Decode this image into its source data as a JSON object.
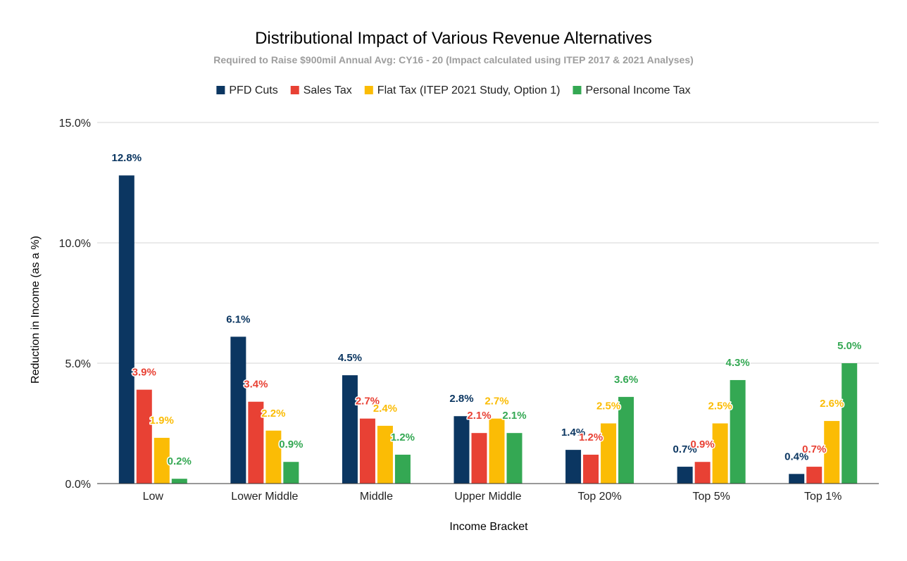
{
  "chart_data": {
    "type": "bar",
    "title": "Distributional Impact of Various Revenue Alternatives",
    "subtitle": "Required to Raise $900mil Annual Avg: CY16 - 20 (Impact calculated using ITEP 2017 & 2021 Analyses)",
    "xlabel": "Income Bracket",
    "ylabel": "Reduction in Income (as a %)",
    "ylim": [
      0,
      15
    ],
    "yticks": [
      {
        "value": 0,
        "label": "0.0%"
      },
      {
        "value": 5,
        "label": "5.0%"
      },
      {
        "value": 10,
        "label": "10.0%"
      },
      {
        "value": 15,
        "label": "15.0%"
      }
    ],
    "grid": true,
    "legend_position": "top",
    "categories": [
      "Low",
      "Lower Middle",
      "Middle",
      "Upper Middle",
      "Top 20%",
      "Top 5%",
      "Top 1%"
    ],
    "series": [
      {
        "name": "PFD Cuts",
        "color": "#0b3661",
        "values": [
          12.8,
          6.1,
          4.5,
          2.8,
          1.4,
          0.7,
          0.4
        ],
        "labels": [
          "12.8%",
          "6.1%",
          "4.5%",
          "2.8%",
          "1.4%",
          "0.7%",
          "0.4%"
        ]
      },
      {
        "name": "Sales Tax",
        "color": "#e84134",
        "values": [
          3.9,
          3.4,
          2.7,
          2.1,
          1.2,
          0.9,
          0.7
        ],
        "labels": [
          "3.9%",
          "3.4%",
          "2.7%",
          "2.1%",
          "1.2%",
          "0.9%",
          "0.7%"
        ]
      },
      {
        "name": "Flat Tax (ITEP 2021 Study, Option 1)",
        "color": "#fbbc05",
        "values": [
          1.9,
          2.2,
          2.4,
          2.7,
          2.5,
          2.5,
          2.6
        ],
        "labels": [
          "1.9%",
          "2.2%",
          "2.4%",
          "2.7%",
          "2.5%",
          "2.5%",
          "2.6%"
        ]
      },
      {
        "name": "Personal Income Tax",
        "color": "#34a853",
        "values": [
          0.2,
          0.9,
          1.2,
          2.1,
          3.6,
          4.3,
          5.0
        ],
        "labels": [
          "0.2%",
          "0.9%",
          "1.2%",
          "2.1%",
          "3.6%",
          "4.3%",
          "5.0%"
        ]
      }
    ]
  }
}
